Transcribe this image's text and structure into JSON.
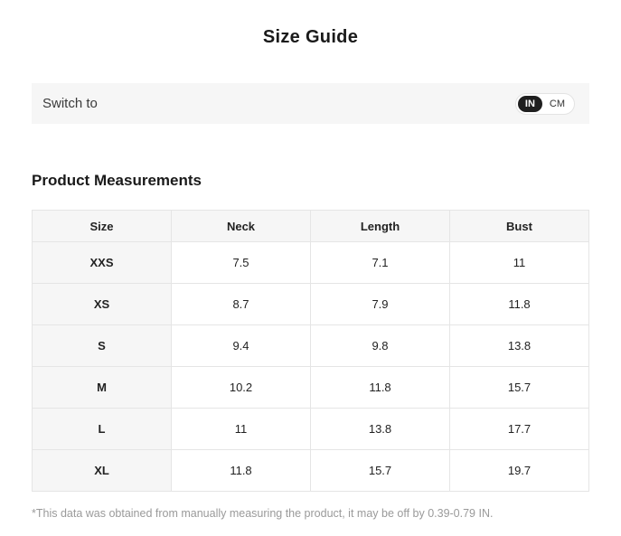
{
  "page_title": "Size Guide",
  "unit_switch": {
    "label": "Switch to",
    "selected_unit": "IN",
    "options": [
      {
        "label": "IN",
        "selected": true
      },
      {
        "label": "CM",
        "selected": false
      }
    ]
  },
  "measurements": {
    "section_title": "Product Measurements",
    "columns": [
      "Size",
      "Neck",
      "Length",
      "Bust"
    ],
    "rows": [
      [
        "XXS",
        "7.5",
        "7.1",
        "11"
      ],
      [
        "XS",
        "8.7",
        "7.9",
        "11.8"
      ],
      [
        "S",
        "9.4",
        "9.8",
        "13.8"
      ],
      [
        "M",
        "10.2",
        "11.8",
        "15.7"
      ],
      [
        "L",
        "11",
        "13.8",
        "17.7"
      ],
      [
        "XL",
        "11.8",
        "15.7",
        "19.7"
      ]
    ]
  },
  "footnote": "*This data was obtained from manually measuring the product, it may be off by 0.39-0.79 IN.",
  "colors": {
    "toggle_selected_bg": "#1f1f1f",
    "bar_background": "#f6f6f6",
    "table_border": "#e5e5e5",
    "footnote_text": "#9a9a9a"
  }
}
